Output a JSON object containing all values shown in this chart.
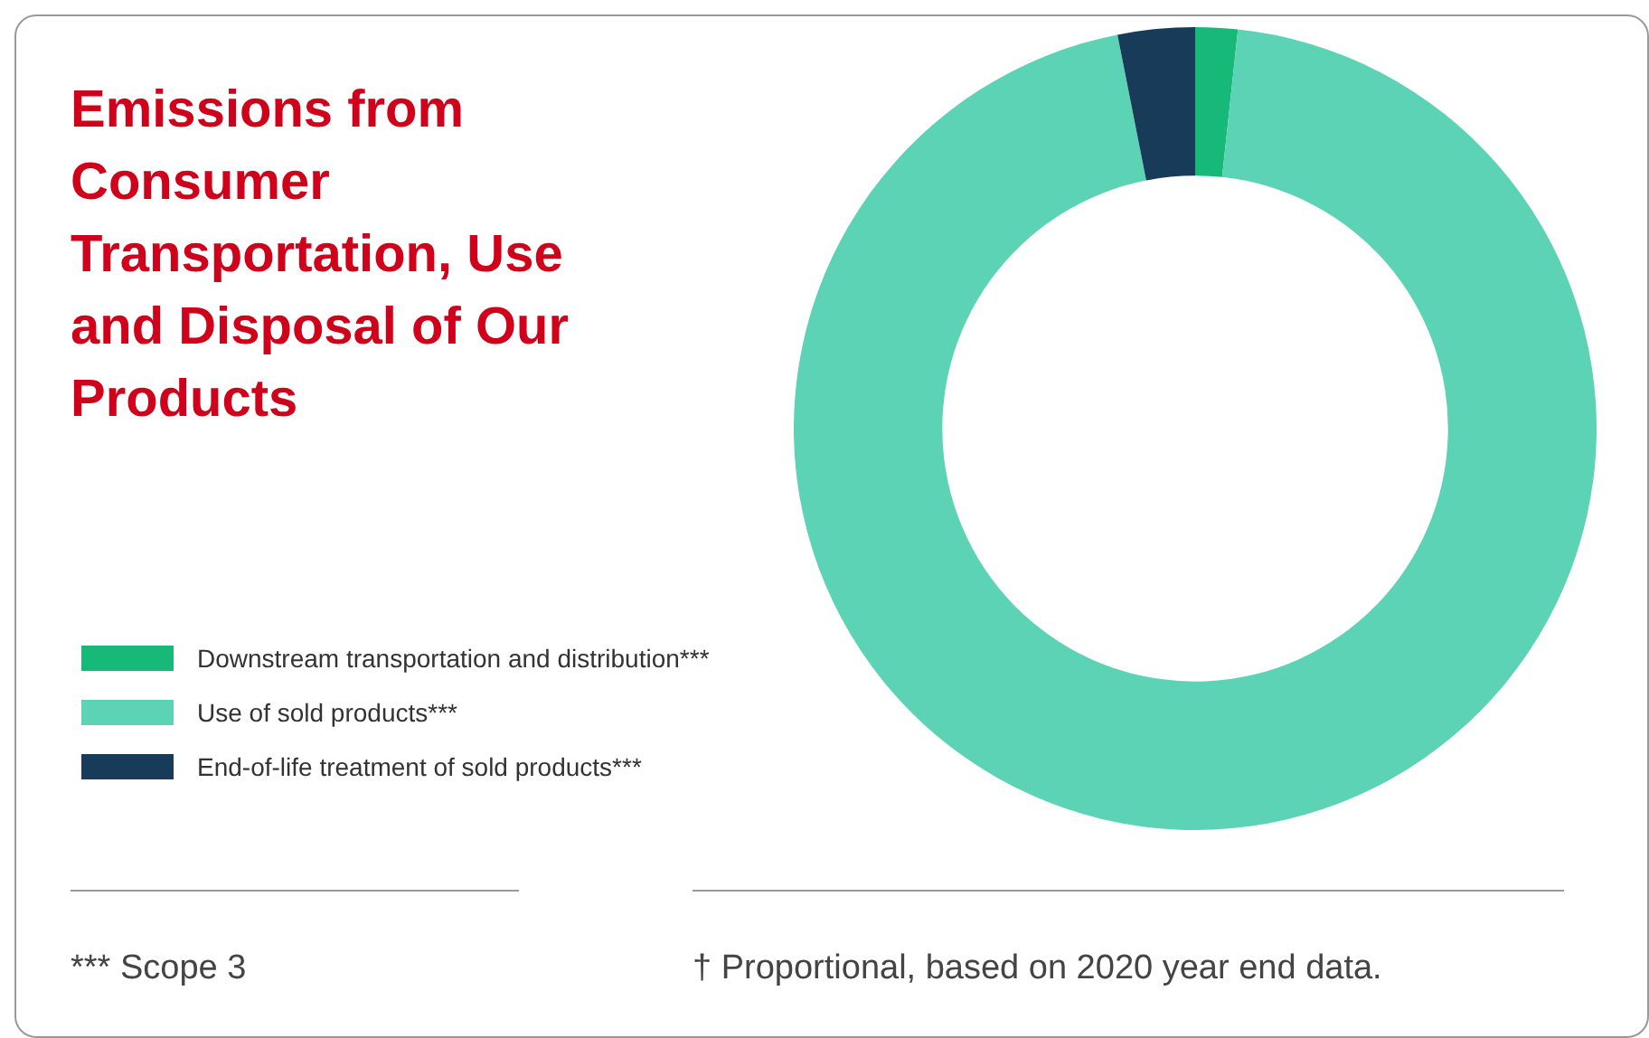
{
  "chart_data": {
    "type": "donut",
    "title": "Emissions from Consumer Transportation, Use and Disposal of Our Products",
    "categories": [
      "Downstream transportation and distribution***",
      "Use of sold products***",
      "End-of-life treatment of sold products***"
    ],
    "values": [
      1.7,
      95.2,
      3.1
    ],
    "colors": [
      "#17b978",
      "#5dd3b6",
      "#183b5a"
    ],
    "legend": "left",
    "annotations": [
      "*** Scope 3",
      "† Proportional, based on 2020 year end data."
    ]
  }
}
